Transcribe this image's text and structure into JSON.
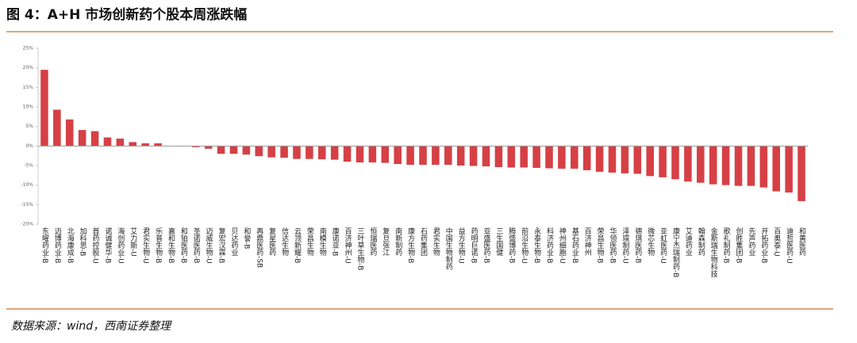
{
  "chart_data": {
    "type": "bar",
    "title": "图 4：A+H 市场创新药个股本周涨跌幅",
    "source": "数据来源：wind，西南证券整理",
    "color": "#d64045",
    "categories": [
      "东曜药业-B",
      "迈博药业-B",
      "北海康成-B",
      "加科思-B",
      "首药控股-U",
      "诺诚健华-B",
      "海创药业-U",
      "艾力斯-U",
      "君实生物-U",
      "乐普生物-B",
      "嘉和生物-B",
      "和铂医药-B",
      "圣诺医药-B",
      "迈威生物-U",
      "复宏汉霖-B",
      "贝达药业",
      "和誉-B",
      "再鼎医药-SB",
      "复星医药",
      "信达生物",
      "云顶新耀-B",
      "荣昌生物",
      "南模生物",
      "康诺亚-B",
      "百济神州-U",
      "三叶草生物-B",
      "恒瑞医药",
      "复旦张江",
      "南新制药",
      "康方生物-B",
      "石药集团",
      "君实生物",
      "中国生物制药",
      "益方生物-U",
      "药明巨诺-B",
      "亚盛医药-B",
      "三生国健",
      "腾盛博药-B",
      "前沿生物-U",
      "永泰生物-B",
      "科济药业-B",
      "神州细胞-U",
      "基石药业-B",
      "百济神州",
      "荣昌生物-B",
      "华领医药-B",
      "泽璟制药-U",
      "德琪医药-B",
      "微芯生物",
      "亚虹医药-U",
      "康宁杰瑞制药-B",
      "艾迪药业",
      "翰森制药",
      "金斯瑞生物科技",
      "歌礼制药-B",
      "创胜集团-B",
      "先声药业",
      "开拓药业-B",
      "百奥泰-U",
      "迪哲医药-U",
      "和黄医药"
    ],
    "values": [
      19.5,
      9.3,
      6.8,
      4.1,
      3.8,
      2.2,
      1.9,
      1.0,
      0.7,
      0.7,
      0,
      0,
      -0.3,
      -0.7,
      -2.0,
      -2.0,
      -2.2,
      -2.6,
      -2.9,
      -3.0,
      -3.3,
      -3.3,
      -3.4,
      -3.5,
      -4.0,
      -4.2,
      -4.2,
      -4.3,
      -4.6,
      -4.8,
      -4.8,
      -4.8,
      -4.8,
      -5.0,
      -5.1,
      -5.2,
      -5.4,
      -5.5,
      -5.5,
      -5.6,
      -5.7,
      -5.8,
      -5.8,
      -6.2,
      -6.6,
      -6.8,
      -7.0,
      -7.1,
      -7.7,
      -8.0,
      -8.5,
      -9.1,
      -9.4,
      -9.8,
      -10.0,
      -10.2,
      -10.2,
      -10.6,
      -11.6,
      -11.9,
      -14.1
    ],
    "ylim": [
      -20,
      25
    ],
    "yticks": [
      {
        "value": 25,
        "label": "25%"
      },
      {
        "value": 20,
        "label": "20%"
      },
      {
        "value": 15,
        "label": "15%"
      },
      {
        "value": 10,
        "label": "10%"
      },
      {
        "value": 5,
        "label": "5%"
      },
      {
        "value": 0,
        "label": "0%"
      },
      {
        "value": -5,
        "label": "-5%"
      },
      {
        "value": -10,
        "label": "-10%"
      },
      {
        "value": -15,
        "label": "-15%"
      },
      {
        "value": -20,
        "label": "-20%"
      }
    ]
  }
}
